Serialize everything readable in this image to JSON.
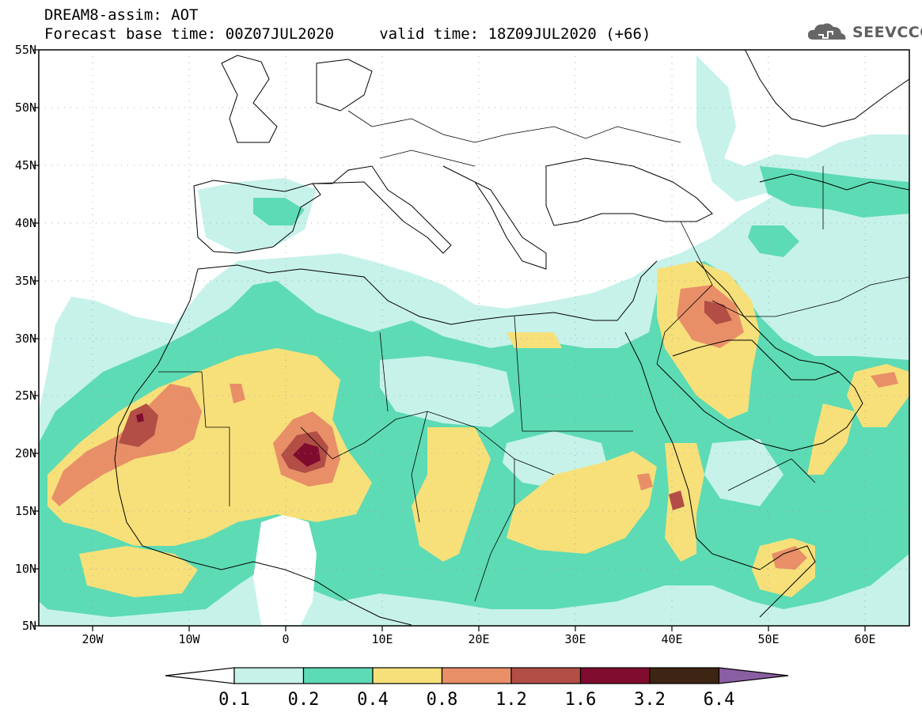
{
  "header": {
    "line1": "DREAM8-assim: AOT",
    "line2": "Forecast base time: 00Z07JUL2020     valid time: 18Z09JUL2020 (+66)"
  },
  "logo": {
    "text": "SEEVCCC",
    "icon": "cloud-icon",
    "color": "#666666"
  },
  "map": {
    "lat_range": [
      5,
      55
    ],
    "lon_range": [
      -25,
      65
    ],
    "lat_ticks": [
      "55N",
      "50N",
      "45N",
      "40N",
      "35N",
      "30N",
      "25N",
      "20N",
      "15N",
      "10N",
      "5N"
    ],
    "lon_ticks": [
      "20W",
      "10W",
      "0",
      "10E",
      "20E",
      "30E",
      "40E",
      "50E",
      "60E"
    ],
    "grid": "dotted"
  },
  "colorbar": {
    "labels": [
      "0.1",
      "0.2",
      "0.4",
      "0.8",
      "1.2",
      "1.6",
      "3.2",
      "6.4"
    ],
    "colors": [
      "#ffffff",
      "#c6f2ea",
      "#5ddbb4",
      "#f7e07a",
      "#e88f68",
      "#b24e45",
      "#7f0b2e",
      "#3e2412",
      "#8a5ea3"
    ]
  }
}
